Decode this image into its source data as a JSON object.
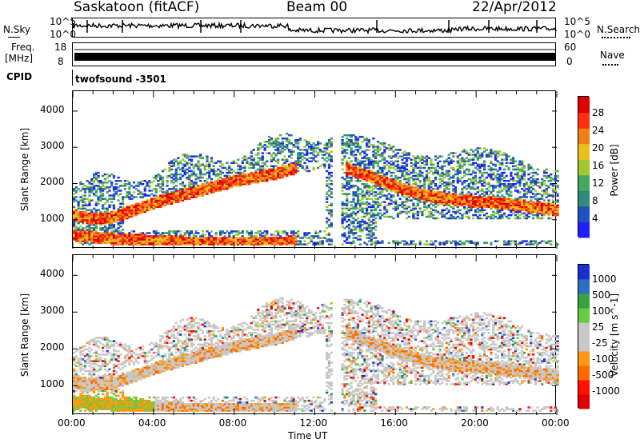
{
  "header": {
    "station": "Saskatoon (fitACF)",
    "beam": "Beam 00",
    "date": "22/Apr/2012"
  },
  "status_panels": {
    "nsky_label": "N.Sky",
    "nsearch_label": "N.Search",
    "noise_ticks_left": [
      "10^5",
      "10^0"
    ],
    "noise_ticks_right": [
      "10^5",
      "10^0"
    ],
    "freq_label_1": "Freq.",
    "freq_label_2": "[MHz]",
    "freq_ticks": [
      "18",
      "8"
    ],
    "nave_label": "Nave",
    "nave_ticks": [
      "60",
      "0"
    ],
    "cpid_label": "CPID",
    "cpid_value": "twofsound -3501"
  },
  "colors": {
    "power_scale": [
      "#1f1fff",
      "#2050c0",
      "#2f8a7a",
      "#44a860",
      "#a0c830",
      "#e8c020",
      "#f08018",
      "#ff3010",
      "#e00000"
    ],
    "velocity_scale": [
      "#1a2fd0",
      "#2f6fc0",
      "#3aa040",
      "#66cc40",
      "#c8c8c8",
      "#c8c8c8",
      "#ff9a10",
      "#ff6a00",
      "#ff1000",
      "#e00000"
    ]
  },
  "chart_data": [
    {
      "type": "heatmap",
      "title": "Power",
      "ylabel": "Slant Range [km]",
      "y_ticks": [
        "1000",
        "2000",
        "3000",
        "4000"
      ],
      "ylim": [
        200,
        4550
      ],
      "x_ticks": [
        "00:00",
        "04:00",
        "08:00",
        "12:00",
        "16:00",
        "20:00",
        "00:00"
      ],
      "colorbar_label": "Power [dB]",
      "colorbar_ticks": [
        "4",
        "8",
        "12",
        "16",
        "20",
        "24",
        "28"
      ],
      "bands": [
        {
          "hours": [
            0.0,
            1.0,
            2.0,
            3.0,
            4.0,
            5.0,
            6.0,
            7.0,
            8.0,
            9.0,
            10.0,
            11.0
          ],
          "range_km": [
            1100,
            1000,
            1050,
            1250,
            1450,
            1600,
            1750,
            1900,
            2050,
            2150,
            2250,
            2400
          ],
          "level": "high"
        },
        {
          "hours": [
            13.5,
            15.0,
            16.5,
            18.0,
            19.5,
            21.0,
            22.5,
            24.0
          ],
          "range_km": [
            2400,
            2100,
            1800,
            1600,
            1500,
            1450,
            1350,
            1250
          ],
          "level": "high"
        },
        {
          "hours": [
            0.0,
            2.0,
            4.0,
            6.0,
            8.0,
            10.0,
            11.0
          ],
          "range_km": [
            550,
            450,
            400,
            350,
            350,
            350,
            380
          ],
          "level": "high"
        }
      ]
    },
    {
      "type": "heatmap",
      "title": "Velocity",
      "ylabel": "Slant Range [km]",
      "xlabel": "Time UT",
      "y_ticks": [
        "1000",
        "2000",
        "3000",
        "4000"
      ],
      "ylim": [
        200,
        4550
      ],
      "x_ticks": [
        "00:00",
        "04:00",
        "08:00",
        "12:00",
        "16:00",
        "20:00",
        "00:00"
      ],
      "colorbar_label": "Velocity [m s^-1]",
      "colorbar_ticks": [
        "1000",
        "500",
        "100",
        "25",
        "-25",
        "-100",
        "-500",
        "-1000"
      ]
    }
  ]
}
